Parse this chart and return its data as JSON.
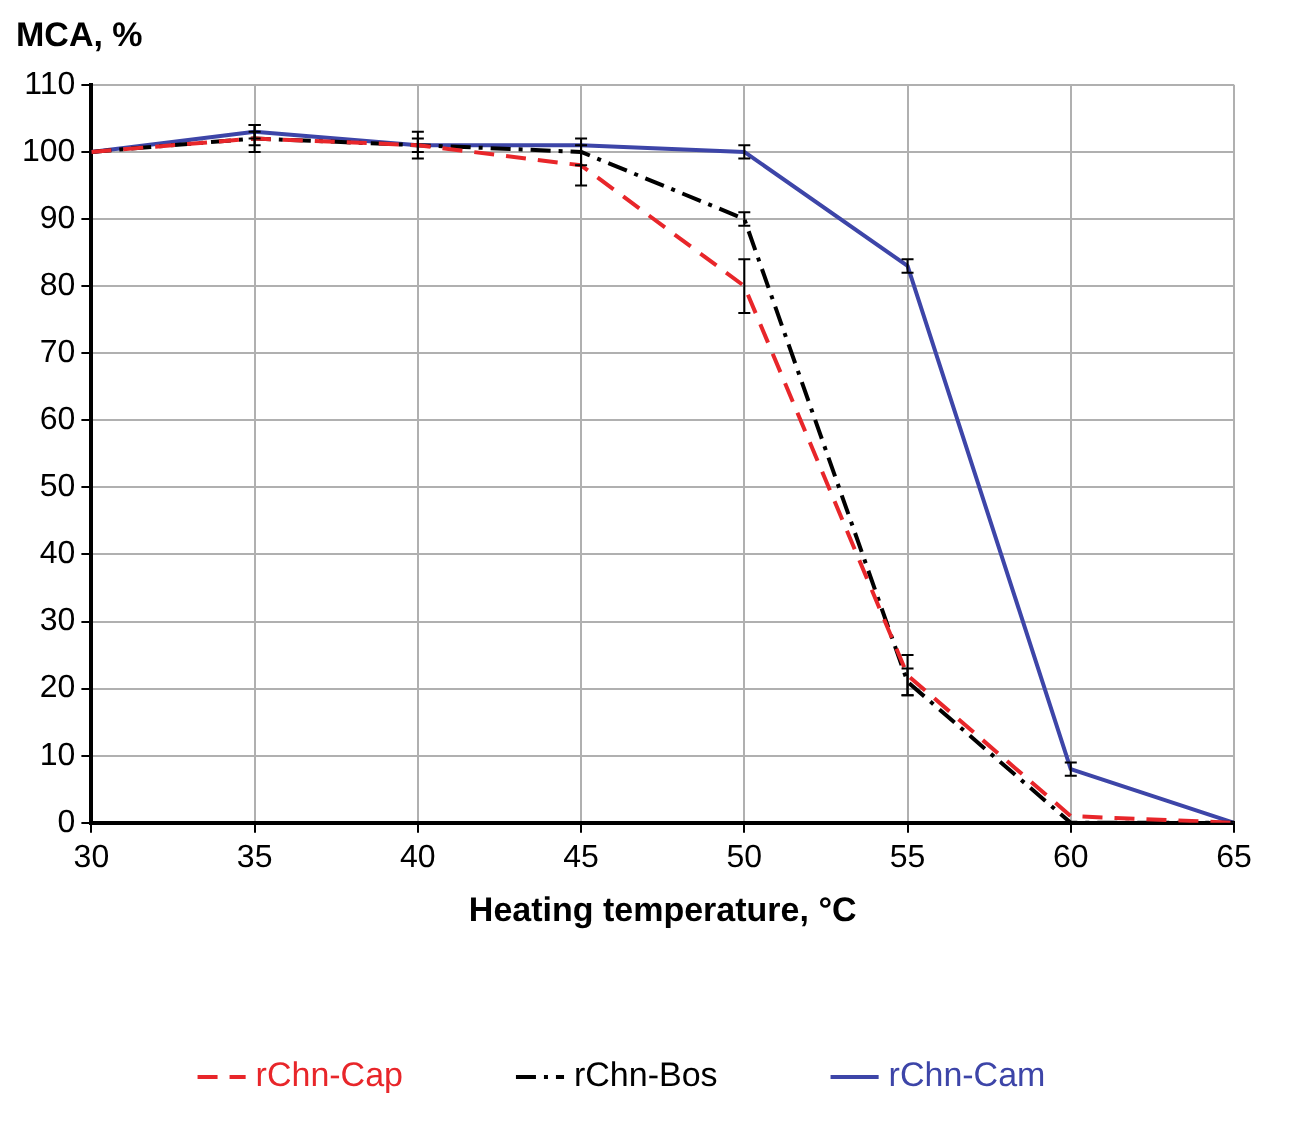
{
  "chart_data": {
    "type": "line",
    "ylabel": "MCA, %",
    "xlabel": "Heating temperature, °C",
    "x": [
      30,
      35,
      40,
      45,
      50,
      55,
      60,
      65
    ],
    "series": [
      {
        "name": "rChn-Cap",
        "color": "#e8262a",
        "line_style": "dashed",
        "values": [
          100,
          102,
          101,
          98,
          80,
          22,
          1,
          0
        ],
        "errors": [
          null,
          1,
          1,
          3,
          4,
          3,
          null,
          null
        ]
      },
      {
        "name": "rChn-Bos",
        "color": "#000000",
        "line_style": "dashdot",
        "values": [
          100,
          102,
          101,
          100,
          90,
          21,
          0,
          0
        ],
        "errors": [
          null,
          2,
          2,
          2,
          1,
          2,
          null,
          null
        ]
      },
      {
        "name": "rChn-Cam",
        "color": "#3d45a8",
        "line_style": "solid",
        "values": [
          100,
          103,
          101,
          101,
          100,
          83,
          8,
          0
        ],
        "errors": [
          null,
          1,
          null,
          null,
          1,
          1,
          1,
          null
        ]
      }
    ],
    "xlim": [
      30,
      65
    ],
    "xticks": [
      30,
      35,
      40,
      45,
      50,
      55,
      60,
      65
    ],
    "ylim": [
      0,
      110
    ],
    "yticks": [
      0,
      10,
      20,
      30,
      40,
      50,
      60,
      70,
      80,
      90,
      100,
      110
    ],
    "grid": true,
    "legend": "bottom"
  }
}
